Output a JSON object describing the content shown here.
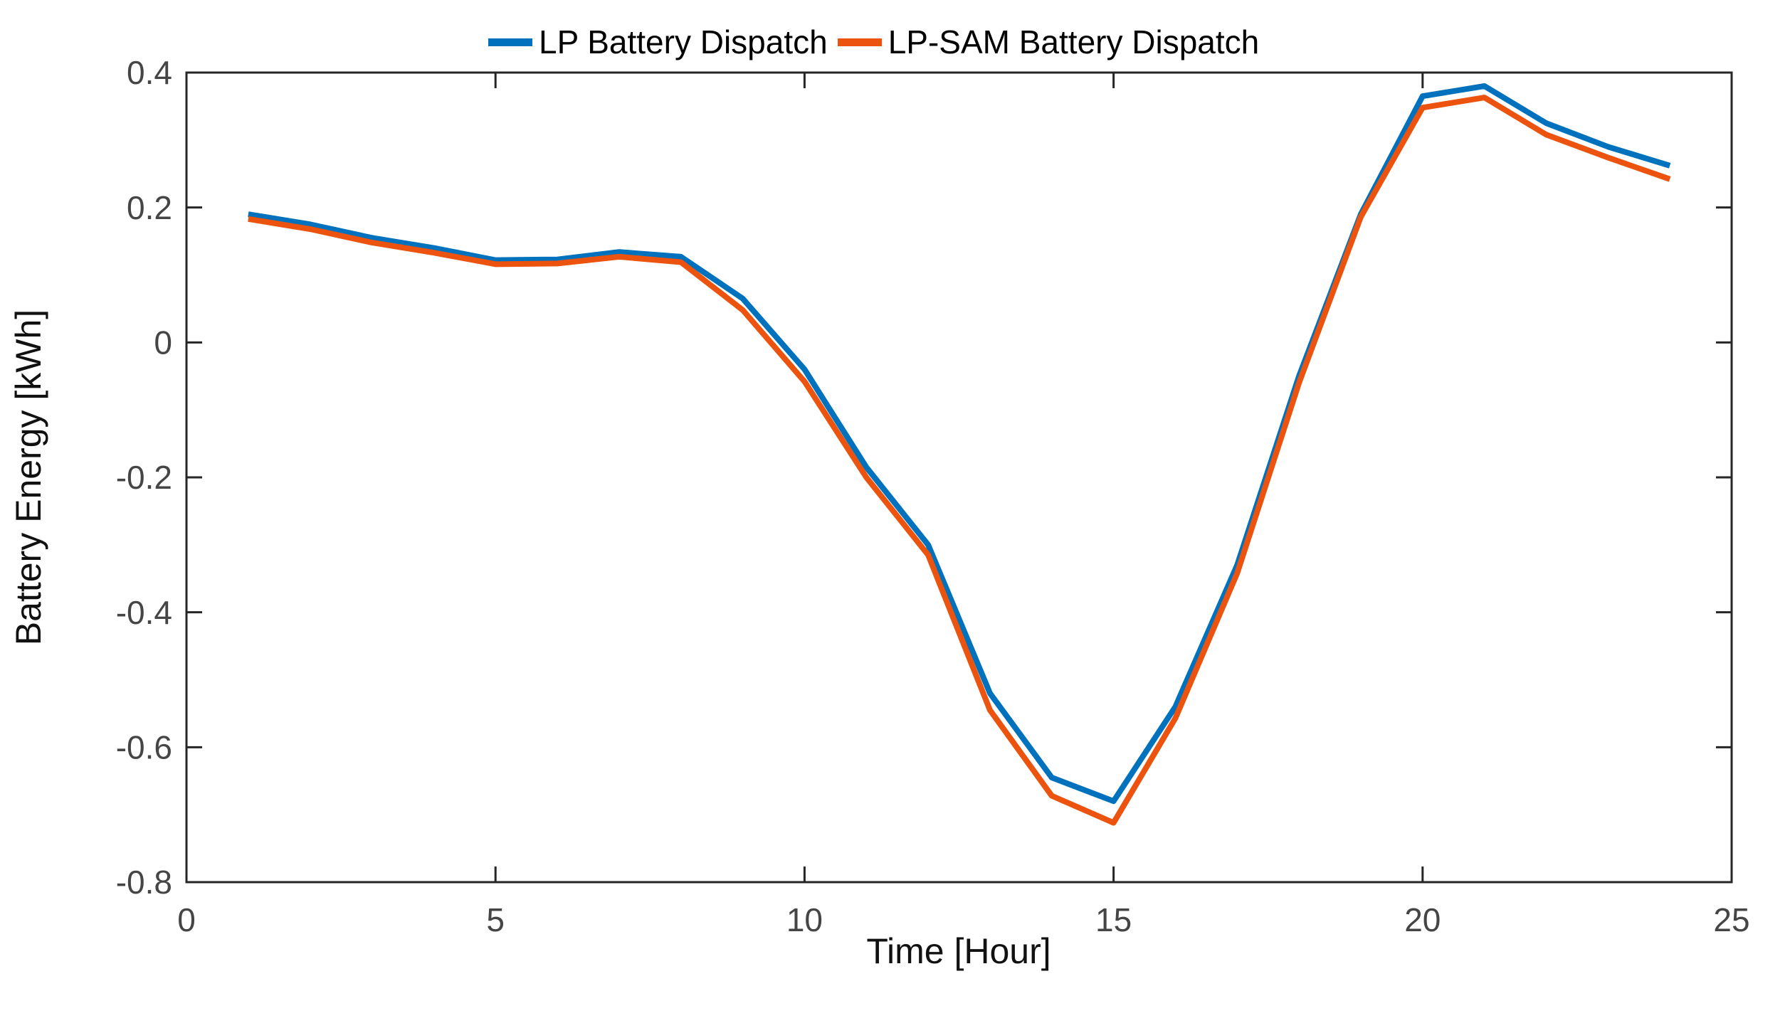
{
  "chart_data": {
    "type": "line",
    "title": "",
    "xlabel": "Time [Hour]",
    "ylabel": "Battery Energy [kWh]",
    "xlim": [
      0,
      25
    ],
    "ylim": [
      -0.8,
      0.4
    ],
    "xticks": [
      0,
      5,
      10,
      15,
      20,
      25
    ],
    "yticks": [
      0.4,
      0.2,
      0,
      -0.2,
      -0.4,
      -0.6,
      -0.8
    ],
    "grid": false,
    "legend_position": "top-center-horizontal",
    "axis_color": "#262626",
    "tick_label_color": "#454545",
    "line_width": 8,
    "x": [
      1,
      2,
      3,
      4,
      5,
      6,
      7,
      8,
      9,
      10,
      11,
      12,
      13,
      14,
      15,
      16,
      17,
      18,
      19,
      20,
      21,
      22,
      23,
      24
    ],
    "series": [
      {
        "name": "LP Battery Dispatch",
        "color": "#0072BD",
        "values": [
          0.19,
          0.175,
          0.155,
          0.14,
          0.122,
          0.123,
          0.134,
          0.127,
          0.065,
          -0.04,
          -0.185,
          -0.3,
          -0.52,
          -0.645,
          -0.68,
          -0.54,
          -0.33,
          -0.05,
          0.19,
          0.365,
          0.38,
          0.325,
          0.29,
          0.262
        ]
      },
      {
        "name": "LP-SAM Battery Dispatch",
        "color": "#EB530F",
        "values": [
          0.183,
          0.168,
          0.148,
          0.133,
          0.116,
          0.117,
          0.127,
          0.119,
          0.048,
          -0.058,
          -0.2,
          -0.315,
          -0.545,
          -0.672,
          -0.712,
          -0.557,
          -0.342,
          -0.06,
          0.186,
          0.348,
          0.363,
          0.308,
          0.274,
          0.242
        ]
      }
    ]
  }
}
